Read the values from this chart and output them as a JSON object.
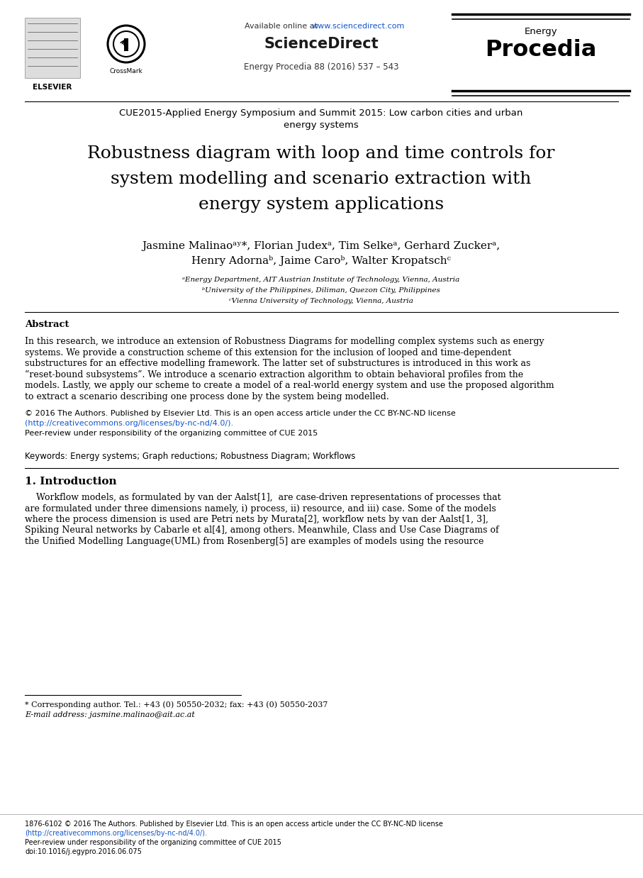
{
  "bg_color": "#ffffff",
  "header": {
    "elsevier_text": "ELSEVIER",
    "available_online": "Available online at ",
    "sciencedirect_url": "www.sciencedirect.com",
    "sciencedirect_title": "ScienceDirect",
    "journal_info": "Energy Procedia 88 (2016) 537 – 543",
    "energy_text": "Energy",
    "procedia_text": "Procedia"
  },
  "conference": "CUE2015-Applied Energy Symposium and Summit 2015: Low carbon cities and urban\nenergy systems",
  "title": "Robustness diagram with loop and time controls for\nsystem modelling and scenario extraction with\nenergy system applications",
  "authors_line1": "Jasmine Malinaoᵃʸ*, Florian Judexᵃ, Tim Selkeᵃ, Gerhard Zuckerᵃ,",
  "authors_line2": "Henry Adornaᵇ, Jaime Caroᵇ, Walter Kropatschᶜ",
  "affiliations": [
    "ᵃEnergy Department, AIT Austrian Institute of Technology, Vienna, Austria",
    "ᵇUniversity of the Philippines, Diliman, Quezon City, Philippines",
    "ᶜVienna University of Technology, Vienna, Austria"
  ],
  "abstract_title": "Abstract",
  "abstract_lines": [
    "In this research, we introduce an extension of Robustness Diagrams for modelling complex systems such as energy",
    "systems. We provide a construction scheme of this extension for the inclusion of looped and time-dependent",
    "substructures for an effective modelling framework. The latter set of substructures is introduced in this work as",
    "“reset-bound subsystems”. We introduce a scenario extraction algorithm to obtain behavioral profiles from the",
    "models. Lastly, we apply our scheme to create a model of a real-world energy system and use the proposed algorithm",
    "to extract a scenario describing one process done by the system being modelled."
  ],
  "copyright_text": "© 2016 The Authors. Published by Elsevier Ltd. This is an open access article under the CC BY-NC-ND license",
  "license_url": "(http://creativecommons.org/licenses/by-nc-nd/4.0/).",
  "peer_review": "Peer-review under responsibility of the organizing committee of CUE 2015",
  "keywords": "Keywords: Energy systems; Graph reductions; Robustness Diagram; Workflows",
  "section1_title": "1. Introduction",
  "intro_lines": [
    "    Workflow models, as formulated by van der Aalst[1],  are case-driven representations of processes that",
    "are formulated under three dimensions namely, i) process, ii) resource, and iii) case. Some of the models",
    "where the process dimension is used are Petri nets by Murata[2], workflow nets by van der Aalst[1, 3],",
    "Spiking Neural networks by Cabarle et al[4], among others. Meanwhile, Class and Use Case Diagrams of",
    "the Unified Modelling Language(UML) from Rosenberg[5] are examples of models using the resource"
  ],
  "footnote_star": "* Corresponding author. Tel.: +43 (0) 50550-2032; fax: +43 (0) 50550-2037",
  "footnote_email": "E-mail address: jasmine.malinao@ait.ac.at",
  "bottom_text1": "1876-6102 © 2016 The Authors. Published by Elsevier Ltd. This is an open access article under the CC BY-NC-ND license",
  "bottom_url": "(http://creativecommons.org/licenses/by-nc-nd/4.0/).",
  "bottom_peer": "Peer-review under responsibility of the organizing committee of CUE 2015",
  "bottom_doi": "doi:10.1016/j.egypro.2016.06.075",
  "link_color": "#1155cc",
  "text_color": "#000000",
  "gray_color": "#555555"
}
